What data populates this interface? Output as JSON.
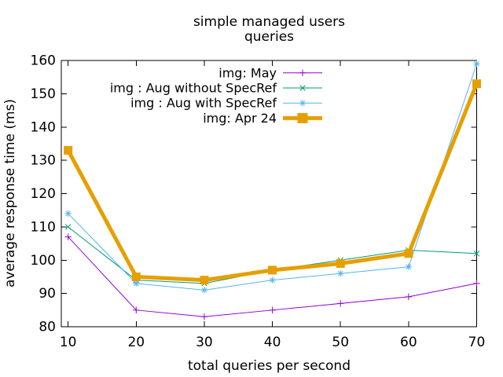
{
  "window": {
    "background": "#ffffff"
  },
  "chart_data": {
    "type": "line",
    "title": "simple managed users queries",
    "title_lines": [
      "simple managed users",
      "queries"
    ],
    "xlabel": "total queries per second",
    "ylabel": "average response time (ms)",
    "x": [
      10,
      20,
      30,
      40,
      50,
      60,
      70
    ],
    "series": [
      {
        "name": "img: May",
        "color": "#9400D3",
        "marker": "plus",
        "line_width": 1,
        "values": [
          107,
          85,
          83,
          85,
          87,
          89,
          93
        ]
      },
      {
        "name": "img : Aug without SpecRef",
        "color": "#009E73",
        "marker": "cross",
        "line_width": 1,
        "values": [
          110,
          94,
          93,
          97,
          100,
          103,
          102
        ]
      },
      {
        "name": "img : Aug with SpecRef",
        "color": "#56B4E9",
        "marker": "asterisk",
        "line_width": 1,
        "values": [
          114,
          93,
          91,
          94,
          96,
          98,
          159
        ]
      },
      {
        "name": "img: Apr 24",
        "color": "#E69F00",
        "marker": "filled-square",
        "line_width": 5,
        "values": [
          133,
          95,
          94,
          97,
          99,
          102,
          153
        ]
      }
    ],
    "xticks": [
      10,
      20,
      30,
      40,
      50,
      60,
      70
    ],
    "yticks": [
      80,
      90,
      100,
      110,
      120,
      130,
      140,
      150,
      160
    ],
    "xlim": [
      9,
      70
    ],
    "ylim": [
      80,
      160
    ],
    "legend_position": "top-center",
    "grid": false,
    "axis_color": "#000000",
    "text_color": "#000000"
  }
}
